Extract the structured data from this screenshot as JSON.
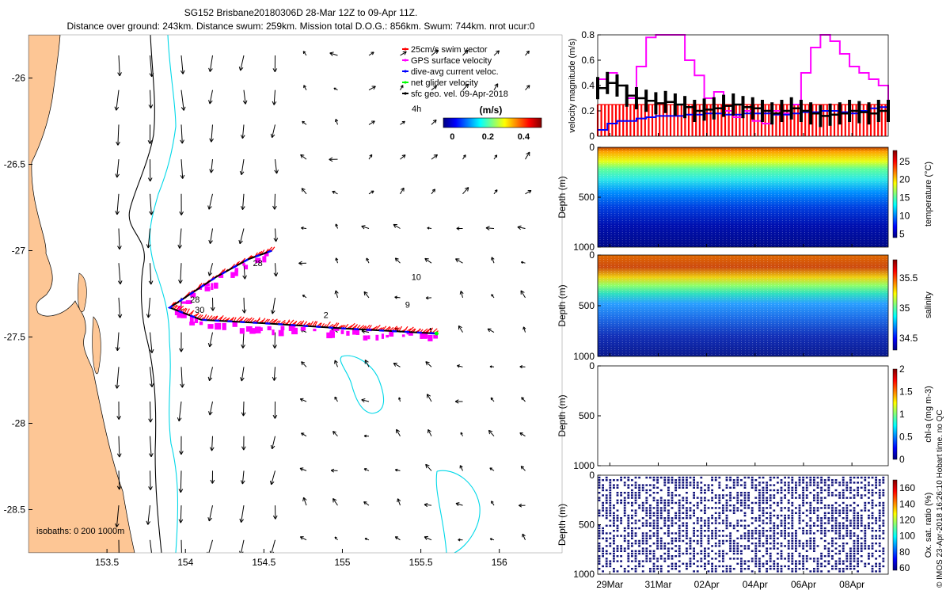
{
  "header": {
    "line1": "SG152 Brisbane20180306D 28-Mar 12Z to 09-Apr 11Z.",
    "line2": "Distance over ground: 243km. Distance swum: 259km. Mission total D.O.G.: 856km. Swum: 744km. nrot ucur:0"
  },
  "watermark": "© IMOS 23-Apr-2018 16:26:10 Hobart time. no QC",
  "map": {
    "x_ticks": [
      "153.5",
      "154",
      "154.5",
      "155",
      "155.5",
      "156"
    ],
    "x_tick_values": [
      153.5,
      154,
      154.5,
      155,
      155.5,
      156
    ],
    "y_ticks": [
      "-26",
      "-26.5",
      "-27",
      "-27.5",
      "-28",
      "-28.5"
    ],
    "y_tick_values": [
      -26,
      -26.5,
      -27,
      -27.5,
      -28,
      -28.5
    ],
    "xlim": [
      153.0,
      156.4
    ],
    "ylim": [
      -28.75,
      -25.75
    ],
    "legend": [
      {
        "label": "25cm/s swim vector",
        "color": "#ff0000"
      },
      {
        "label": "GPS surface velocity",
        "color": "#ff00ff"
      },
      {
        "label": "dive-avg current veloc.",
        "color": "#0000ff"
      },
      {
        "label": "net glider velocity",
        "color": "#00ff00"
      },
      {
        "label": "sfc geo. vel. 09-Apr-2018",
        "color": "#000000"
      }
    ],
    "legend_extra": "4h",
    "colorbar": {
      "title": "(m/s)",
      "ticks": [
        "0",
        "0.2",
        "0.4"
      ],
      "tick_values": [
        0,
        0.2,
        0.4
      ],
      "range": [
        -0.05,
        0.5
      ]
    },
    "isobaths_label": "isobaths: 0    200  1000m",
    "track_labels": [
      "28",
      "28",
      "30",
      "2",
      "10",
      "9"
    ],
    "track_label_positions_lonlat": [
      [
        154.43,
        -27.09
      ],
      [
        154.03,
        -27.3
      ],
      [
        154.06,
        -27.36
      ],
      [
        154.88,
        -27.39
      ],
      [
        155.44,
        -27.17
      ],
      [
        155.4,
        -27.33
      ]
    ],
    "glider_track_lonlat": [
      [
        154.55,
        -27.0
      ],
      [
        154.4,
        -27.05
      ],
      [
        154.2,
        -27.15
      ],
      [
        153.9,
        -27.33
      ],
      [
        154.1,
        -27.4
      ],
      [
        154.5,
        -27.42
      ],
      [
        155.0,
        -27.45
      ],
      [
        155.6,
        -27.48
      ]
    ]
  },
  "panels": {
    "velocity": {
      "ylabel": "velocity magnitude (m/s)",
      "yticks": [
        "0",
        "0.2",
        "0.4",
        "0.6",
        "0.8"
      ],
      "ytick_values": [
        0,
        0.2,
        0.4,
        0.6,
        0.8
      ],
      "ylim": [
        0,
        0.8
      ],
      "swim_vector": 0.25,
      "series": [
        {
          "name": "GPS surface velocity",
          "color": "#ff00ff",
          "values": [
            0.45,
            0.5,
            0.4,
            0.3,
            0.55,
            0.78,
            0.95,
            0.85,
            0.8,
            0.6,
            0.48,
            0.3,
            0.35,
            0.2,
            0.15,
            0.2,
            0.12,
            0.1,
            0.2,
            0.18,
            0.25,
            0.5,
            0.7,
            0.8,
            0.75,
            0.65,
            0.55,
            0.5,
            0.45,
            0.4,
            0.22
          ]
        },
        {
          "name": "dive-avg current veloc.",
          "color": "#0000ff",
          "values": [
            0.05,
            0.1,
            0.12,
            0.12,
            0.14,
            0.15,
            0.16,
            0.16,
            0.16,
            0.17,
            0.17,
            0.18,
            0.18,
            0.17,
            0.17,
            0.18,
            0.18,
            0.18,
            0.17,
            0.17,
            0.18,
            0.19,
            0.19,
            0.2,
            0.2,
            0.19,
            0.18,
            0.2,
            0.22,
            0.23,
            0.22
          ]
        },
        {
          "name": "net glider velocity",
          "color": "#000000",
          "values": [
            0.38,
            0.42,
            0.4,
            0.32,
            0.3,
            0.28,
            0.26,
            0.27,
            0.25,
            0.23,
            0.2,
            0.21,
            0.22,
            0.24,
            0.25,
            0.23,
            0.22,
            0.2,
            0.18,
            0.2,
            0.22,
            0.2,
            0.18,
            0.16,
            0.17,
            0.18,
            0.2,
            0.19,
            0.18,
            0.2,
            0.2
          ]
        }
      ]
    },
    "temperature": {
      "ylabel": "Depth (m)",
      "yticks": [
        "0",
        "500",
        "1000"
      ],
      "ytick_values": [
        0,
        500,
        1000
      ],
      "cb_label": "temperature (°C)",
      "cb_ticks": [
        "5",
        "10",
        "15",
        "20",
        "25"
      ],
      "cb_tick_values": [
        5,
        10,
        15,
        20,
        25
      ],
      "cb_range": [
        4,
        28
      ]
    },
    "salinity": {
      "ylabel": "Depth (m)",
      "yticks": [
        "0",
        "500",
        "1000"
      ],
      "ytick_values": [
        0,
        500,
        1000
      ],
      "cb_label": "salinity",
      "cb_ticks": [
        "34.5",
        "35",
        "35.5"
      ],
      "cb_tick_values": [
        34.5,
        35,
        35.5
      ],
      "cb_range": [
        34.3,
        35.8
      ]
    },
    "chla": {
      "ylabel": "Depth (m)",
      "yticks": [
        "0",
        "500",
        "1000"
      ],
      "ytick_values": [
        0,
        500,
        1000
      ],
      "cb_label": "chl-a (mg m-3)",
      "cb_ticks": [
        "0",
        "0.5",
        "1",
        "1.5",
        "2"
      ],
      "cb_tick_values": [
        0,
        0.5,
        1,
        1.5,
        2
      ],
      "cb_range": [
        0,
        2
      ]
    },
    "oxygen": {
      "ylabel": "Depth (m)",
      "yticks": [
        "0",
        "500",
        "1000"
      ],
      "ytick_values": [
        0,
        500,
        1000
      ],
      "cb_label": "Ox. sat. ratio (%)",
      "cb_ticks": [
        "60",
        "80",
        "100",
        "120",
        "140",
        "160"
      ],
      "cb_tick_values": [
        60,
        80,
        100,
        120,
        140,
        160
      ],
      "cb_range": [
        57,
        170
      ]
    },
    "time_ticks": [
      "29Mar",
      "31Mar",
      "02Apr",
      "04Apr",
      "06Apr",
      "08Apr"
    ],
    "time_tick_days": [
      1,
      3,
      5,
      7,
      9,
      11
    ],
    "time_range_days": [
      0.5,
      12.5
    ]
  },
  "chart_data": [
    {
      "type": "line",
      "title": "SG152 Brisbane20180306D 28-Mar 12Z to 09-Apr 11Z.",
      "xlabel": "",
      "ylabel": "",
      "xlim": [
        153.0,
        156.4
      ],
      "ylim": [
        -28.75,
        -25.75
      ],
      "series": [
        {
          "name": "dive-avg current veloc.",
          "x": [
            154.55,
            154.4,
            154.2,
            153.9,
            154.1,
            154.5,
            155.0,
            155.6
          ],
          "y": [
            -27.0,
            -27.05,
            -27.15,
            -27.33,
            -27.4,
            -27.42,
            -27.45,
            -27.48
          ]
        }
      ]
    },
    {
      "type": "line",
      "xlabel": "",
      "ylabel": "velocity magnitude (m/s)",
      "ylim": [
        0,
        0.8
      ],
      "categories": [
        "29Mar",
        "31Mar",
        "02Apr",
        "04Apr",
        "06Apr",
        "08Apr"
      ],
      "series": [
        {
          "name": "GPS surface velocity",
          "values": [
            0.45,
            0.8,
            0.3,
            0.15,
            0.7,
            0.45
          ]
        },
        {
          "name": "dive-avg current veloc.",
          "values": [
            0.05,
            0.15,
            0.17,
            0.18,
            0.2,
            0.22
          ]
        },
        {
          "name": "net glider velocity",
          "values": [
            0.38,
            0.27,
            0.21,
            0.2,
            0.17,
            0.2
          ]
        }
      ]
    },
    {
      "type": "heatmap",
      "ylabel": "Depth (m)",
      "ylim": [
        1000,
        0
      ],
      "colorbar": "temperature (°C)",
      "crange": [
        5,
        27
      ]
    },
    {
      "type": "heatmap",
      "ylabel": "Depth (m)",
      "ylim": [
        1000,
        0
      ],
      "colorbar": "salinity",
      "crange": [
        34.4,
        35.7
      ]
    },
    {
      "type": "heatmap",
      "ylabel": "Depth (m)",
      "ylim": [
        1000,
        0
      ],
      "colorbar": "chl-a (mg m-3)",
      "crange": [
        0,
        2
      ]
    },
    {
      "type": "heatmap",
      "ylabel": "Depth (m)",
      "ylim": [
        1000,
        0
      ],
      "colorbar": "Ox. sat. ratio (%)",
      "crange": [
        60,
        165
      ]
    }
  ]
}
